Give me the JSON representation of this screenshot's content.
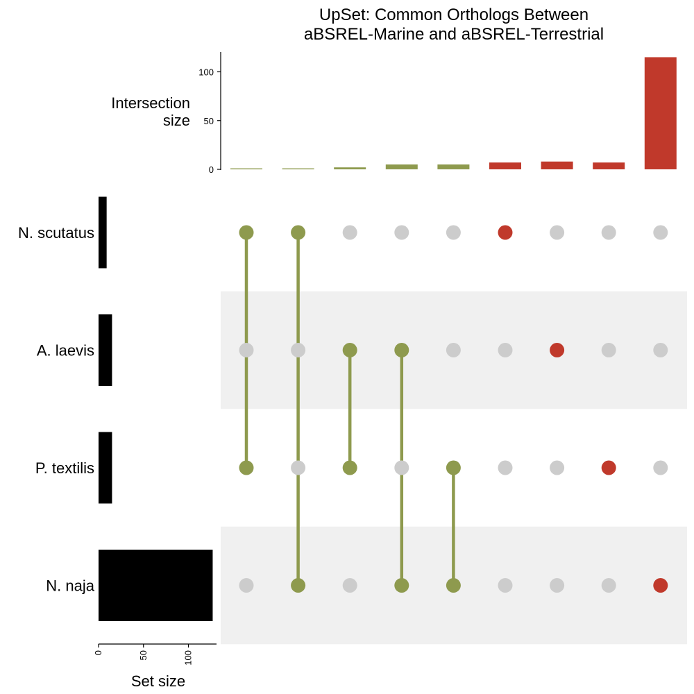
{
  "chart_data": {
    "type": "upset",
    "title_lines": [
      "UpSet: Common Orthologs Between",
      "aBSREL-Marine and aBSREL-Terrestrial"
    ],
    "intersection_axis": {
      "label_lines": [
        "Intersection",
        "size"
      ],
      "ticks": [
        0,
        50,
        100
      ],
      "ylim": [
        0,
        120
      ]
    },
    "set_size_axis": {
      "label": "Set size",
      "ticks": [
        0,
        50,
        100
      ],
      "xlim": [
        0,
        133
      ]
    },
    "sets": [
      {
        "name": "N. scutatus",
        "size": 9
      },
      {
        "name": "A. laevis",
        "size": 15
      },
      {
        "name": "P. textilis",
        "size": 15
      },
      {
        "name": "N. naja",
        "size": 127
      }
    ],
    "intersections": [
      {
        "members": [
          0,
          2
        ],
        "size": 1,
        "color": "#8e9a4e"
      },
      {
        "members": [
          0,
          3
        ],
        "size": 1,
        "color": "#8e9a4e"
      },
      {
        "members": [
          1,
          2
        ],
        "size": 2,
        "color": "#8e9a4e"
      },
      {
        "members": [
          1,
          3
        ],
        "size": 5,
        "color": "#8e9a4e"
      },
      {
        "members": [
          2,
          3
        ],
        "size": 5,
        "color": "#8e9a4e"
      },
      {
        "members": [
          0
        ],
        "size": 7,
        "color": "#c0392b"
      },
      {
        "members": [
          1
        ],
        "size": 8,
        "color": "#c0392b"
      },
      {
        "members": [
          2
        ],
        "size": 7,
        "color": "#c0392b"
      },
      {
        "members": [
          3
        ],
        "size": 115,
        "color": "#c0392b"
      }
    ],
    "colors": {
      "shared": "#8e9a4e",
      "unique": "#c0392b",
      "inactive_dot": "#cccccc",
      "stripe": "#f0f0f0",
      "set_bar": "#000000"
    }
  }
}
